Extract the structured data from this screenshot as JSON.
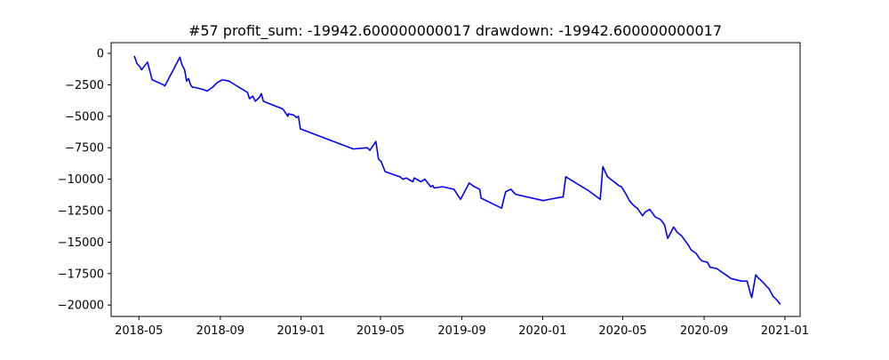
{
  "chart_data": {
    "type": "line",
    "title": "#57   profit_sum: -19942.600000000017 drawdown: -19942.600000000017",
    "xlabel": "",
    "ylabel": "",
    "grid": false,
    "legend": "none",
    "x_axis_type": "date",
    "xlim": [
      "2018-03-20",
      "2021-01-24"
    ],
    "ylim": [
      -20905,
      850
    ],
    "x_ticks": [
      "2018-05-01",
      "2018-09-01",
      "2019-01-01",
      "2019-05-01",
      "2019-09-01",
      "2020-01-01",
      "2020-05-01",
      "2020-09-01",
      "2021-01-01"
    ],
    "x_tick_labels": [
      "2018-05",
      "2018-09",
      "2019-01",
      "2019-05",
      "2019-09",
      "2020-01",
      "2020-05",
      "2020-09",
      "2021-01"
    ],
    "y_ticks": [
      0,
      -2500,
      -5000,
      -7500,
      -10000,
      -12500,
      -15000,
      -17500,
      -20000
    ],
    "y_tick_labels": [
      "0",
      "−2500",
      "−5000",
      "−7500",
      "−10000",
      "−12500",
      "−15000",
      "−17500",
      "−20000"
    ],
    "series": [
      {
        "color": "#0000ff",
        "x": [
          "2018-04-24",
          "2018-04-28",
          "2018-05-03",
          "2018-05-05",
          "2018-05-14",
          "2018-05-21",
          "2018-06-07",
          "2018-06-09",
          "2018-07-02",
          "2018-07-05",
          "2018-07-09",
          "2018-07-12",
          "2018-07-15",
          "2018-07-18",
          "2018-07-21",
          "2018-07-24",
          "2018-08-08",
          "2018-08-12",
          "2018-08-20",
          "2018-08-28",
          "2018-09-04",
          "2018-09-14",
          "2018-09-20",
          "2018-10-12",
          "2018-10-15",
          "2018-10-20",
          "2018-10-24",
          "2018-10-30",
          "2018-11-02",
          "2018-11-05",
          "2018-11-19",
          "2018-12-04",
          "2018-12-07",
          "2018-12-12",
          "2018-12-13",
          "2018-12-21",
          "2018-12-25",
          "2018-12-28",
          "2018-12-31",
          "2019-03-21",
          "2019-04-11",
          "2019-04-15",
          "2019-04-24",
          "2019-04-28",
          "2019-05-02",
          "2019-05-08",
          "2019-05-30",
          "2019-06-04",
          "2019-06-09",
          "2019-06-12",
          "2019-06-19",
          "2019-06-21",
          "2019-07-01",
          "2019-07-04",
          "2019-07-07",
          "2019-07-16",
          "2019-07-19",
          "2019-07-21",
          "2019-08-03",
          "2019-08-20",
          "2019-08-30",
          "2019-09-12",
          "2019-09-20",
          "2019-09-28",
          "2019-09-30",
          "2019-10-31",
          "2019-11-06",
          "2019-11-14",
          "2019-11-21",
          "2020-01-02",
          "2020-01-11",
          "2020-02-01",
          "2020-02-05",
          "2020-02-20",
          "2020-03-10",
          "2020-03-28",
          "2020-04-01",
          "2020-04-08",
          "2020-04-25",
          "2020-04-29",
          "2020-05-05",
          "2020-05-11",
          "2020-05-16",
          "2020-05-20",
          "2020-05-23",
          "2020-05-27",
          "2020-05-31",
          "2020-06-04",
          "2020-06-11",
          "2020-06-19",
          "2020-06-27",
          "2020-07-03",
          "2020-07-08",
          "2020-07-17",
          "2020-07-22",
          "2020-07-29",
          "2020-08-02",
          "2020-08-09",
          "2020-08-12",
          "2020-08-20",
          "2020-08-25",
          "2020-08-29",
          "2020-09-06",
          "2020-09-10",
          "2020-09-20",
          "2020-10-01",
          "2020-10-12",
          "2020-10-28",
          "2020-11-05",
          "2020-11-10",
          "2020-11-12",
          "2020-11-18",
          "2020-11-21",
          "2020-12-01",
          "2020-12-04",
          "2020-12-08",
          "2020-12-14",
          "2020-12-16",
          "2020-12-20",
          "2020-12-25"
        ],
        "values": [
          -200,
          -800,
          -1100,
          -1300,
          -700,
          -2100,
          -2500,
          -2600,
          -300,
          -900,
          -1300,
          -2200,
          -2000,
          -2500,
          -2700,
          -2700,
          -2900,
          -3000,
          -2700,
          -2300,
          -2100,
          -2200,
          -2400,
          -3100,
          -3600,
          -3400,
          -3800,
          -3500,
          -3200,
          -3800,
          -4100,
          -4400,
          -4600,
          -5000,
          -4800,
          -4900,
          -5100,
          -5000,
          -6000,
          -7600,
          -7500,
          -7700,
          -7000,
          -8400,
          -8600,
          -9400,
          -9800,
          -10000,
          -9900,
          -10000,
          -10200,
          -9900,
          -10200,
          -10100,
          -10000,
          -10600,
          -10500,
          -10700,
          -10600,
          -10800,
          -11600,
          -10300,
          -10600,
          -10800,
          -11500,
          -12300,
          -11000,
          -10800,
          -11200,
          -11700,
          -11600,
          -11400,
          -9800,
          -10300,
          -10900,
          -11600,
          -9000,
          -9800,
          -10500,
          -10600,
          -11100,
          -11700,
          -12000,
          -12200,
          -12300,
          -12600,
          -12900,
          -12600,
          -12400,
          -13000,
          -13200,
          -13600,
          -14700,
          -13800,
          -14200,
          -14500,
          -14800,
          -15300,
          -15600,
          -15900,
          -16300,
          -16500,
          -16600,
          -17000,
          -17100,
          -17500,
          -17900,
          -18100,
          -18100,
          -19100,
          -19400,
          -17600,
          -17800,
          -18300,
          -18500,
          -18700,
          -19300,
          -19400,
          -19600,
          -19942.6
        ]
      }
    ]
  }
}
